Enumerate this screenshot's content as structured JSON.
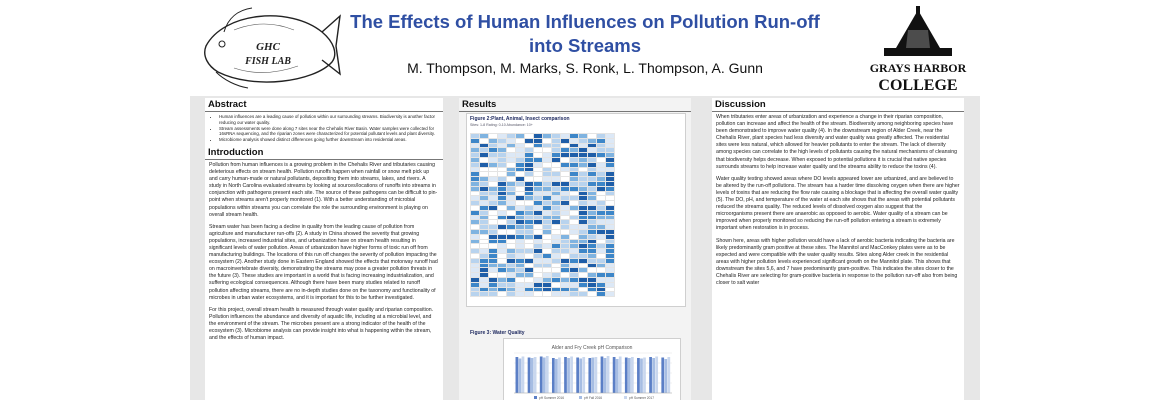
{
  "header": {
    "title": "The Effects of Human Influences on Pollution Run-off into Streams",
    "authors": "M. Thompson, M. Marks, S. Ronk, L. Thompson, A. Gunn",
    "left_logo": {
      "line1": "GHC",
      "line2": "FISH LAB"
    },
    "right_logo": {
      "line1": "GRAYS HARBOR",
      "line2": "COLLEGE"
    }
  },
  "abstract": {
    "heading": "Abstract",
    "bullets": [
      "Human influences are a leading cause of pollution within our surrounding streams. Biodiversity is another factor reducing our water quality.",
      "Stream assessments were done along 7 sites near the Chehalis River Basin. Water samples were collected for 16sRNA sequencing, and the riparian zones were characterized for potential pollutant levels and plant diversity.",
      "Microbiome analysis showed distinct differences going further downstream into residential areas."
    ]
  },
  "introduction": {
    "heading": "Introduction",
    "paragraphs": [
      "Pollution from human influences is a growing problem in the Chehalis River and tributaries causing deleterious effects on stream health. Pollution runoffs happen when rainfall or snow melt pick up and carry human-made or natural pollutants, depositing them into streams, lakes, and rivers. A study in North Carolina evaluated streams by looking at sources/locations of runoffs into streams in conjunction with pathogens present each site. The source of these pathogens can be difficult to pin-point when streams aren't properly monitored (1). With a better understanding of microbial populations within streams you can correlate the role the surrounding environment is playing on overall stream health.",
      "Stream water has been facing a decline in quality from the leading cause of pollution from agriculture and manufacturer run-offs (2). A study in China showed the severity that growing populations, increased industrial sites, and urbanization have on stream health resulting in significant levels of water pollution. Areas of urbanization have higher forms of toxic run off from manufacturing buildings. The locations of this run off changes the severity of pollution impacting the ecosystem (2). Another study done in Eastern England showed the effects that motorway runoff had on macroinvertebrate diversity, demonstrating the streams may pose a greater pollution threats in the future (3). These studies are important in a world that is facing increasing industrialization, and suffering ecological consequences. Although there have been many studies related to runoff pollution affecting streams, there are no in-depth studies done on the taxonomy and functionality of microbes in urban water ecosystems, and it is important for this to be further investigated.",
      "For this project, overall stream health is measured through water quality and riparian composition. Pollution influences the abundance and diversity of aquatic life, including at a microbial level, and the environment of the stream. The microbes present are a strong indicator of the health of the ecosystem (3). Microbiome analysis can provide insight into what is happening within the stream, and the effects of human impact."
    ]
  },
  "results": {
    "heading": "Results",
    "fig2": {
      "title": "Figure 2:Plant, Animal, Insect comparison",
      "subtitle": "Sites: 1-8     Rating: 0-10     Abundance: 10+"
    },
    "fig3": {
      "title": "Figure 3: Water Quality"
    }
  },
  "discussion": {
    "heading": "Discussion",
    "paragraphs": [
      "When tributaries enter areas of urbanization and experience a change in their riparian composition, pollution can increase and affect the health of the stream. Biodiversity among neighboring species have been demonstrated to improve water quality (4). In the downstream region of Alder Creek, near the Chehalis River, plant species had less diversity and water quality was greatly affected. The residential sites were less natural, which allowed for heavier pollutants to enter the stream. The lack of diversity among species can correlate to the high levels of pollutants causing the natural mechanisms of cleansing that biodiversity helps decrease. When exposed to potential pollutions it is crucial that native species surrounds streams to help increase water quality and the streams ability to reduce the toxins (4).",
      "Water quality testing showed areas where DO levels appeared lower are urbanized, and are believed to be altered by the run-off pollutions. The stream has a harder time dissolving oxygen when there are higher levels of toxins that are reducing the flow rate causing a blockage that is affecting the overall water quality (5). The DO, pH, and temperature of the water at each site shows that the areas with potential pollutants reduced the streams quality. The reduced levels of dissolved oxygen also suggest that the microorganisms present there are anaerobic as opposed to aerobic. Water quality of a stream can be improved when properly monitored so reducing the run-off pollution entering a stream is extremely important when restoration is in process.",
      "Shown here, areas with higher pollution would have a lack of aerobic bacteria indicating the bacteria are likely predominantly gram positive at these sites. The Mannitol and MacConkey plates were as to be expected and were compatible with the water quality results. Sites along Alder creek in the residential areas with higher pollution levels experienced significant growth on the Mannitol plate. This shows that downstream the sites 5,6, and 7 have predominantly gram-positive. This indicates the sites closer to the Chehalis River are selecting for gram-positive bacteria in response to the pollution run-off also from being closer to salt water"
    ]
  },
  "chart_data": {
    "type": "bar",
    "title": "Alder and Fry Creek pH Comparison",
    "categories": [
      "1",
      "2",
      "3",
      "4",
      "5",
      "6",
      "7",
      "8",
      "9",
      "10",
      "11",
      "12",
      "13"
    ],
    "series": [
      {
        "name": "pH Summer 2016",
        "values": [
          7.2,
          7.1,
          7.3,
          7.0,
          7.2,
          7.1,
          7.0,
          7.3,
          7.2,
          7.1,
          7.0,
          7.2,
          7.1
        ]
      },
      {
        "name": "pH Fall 2016",
        "values": [
          6.9,
          7.0,
          7.1,
          6.8,
          7.0,
          6.9,
          7.1,
          7.0,
          6.8,
          7.0,
          6.9,
          7.0,
          6.8
        ]
      },
      {
        "name": "pH Summer 2017",
        "values": [
          7.3,
          7.2,
          7.4,
          7.1,
          7.3,
          7.2,
          7.2,
          7.4,
          7.3,
          7.2,
          7.1,
          7.3,
          7.2
        ]
      }
    ],
    "ylim": [
      0,
      8
    ],
    "colors": [
      "#5b7fc6",
      "#a6bde3",
      "#c9d7ee"
    ]
  }
}
